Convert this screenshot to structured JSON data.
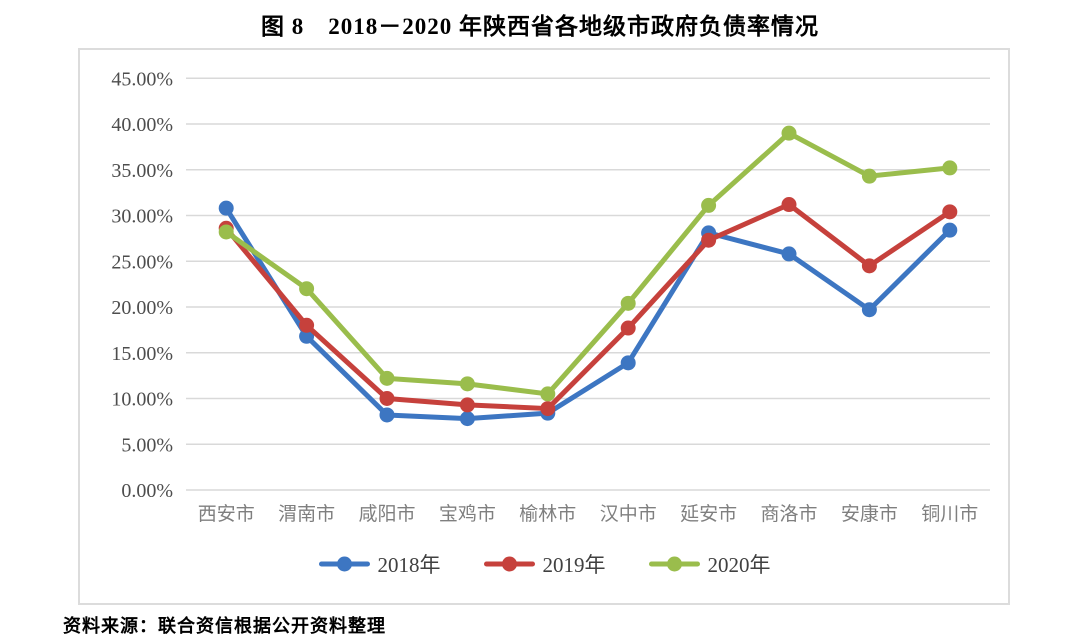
{
  "title": "图 8　2018－2020 年陕西省各地级市政府负债率情况",
  "source_note": "资料来源：联合资信根据公开资料整理",
  "colors": {
    "series_2018": "#3d76c2",
    "series_2019": "#c6413c",
    "series_2020": "#9abd4c",
    "gridline": "#d9d9d9",
    "frame_border": "#dcdcdc",
    "ytick_text": "#4d4d4d",
    "xtick_text": "#7f7f7f",
    "legend_text": "#404040"
  },
  "chart_data": {
    "type": "line",
    "title": "图 8　2018－2020 年陕西省各地级市政府负债率情况",
    "categories": [
      "西安市",
      "渭南市",
      "咸阳市",
      "宝鸡市",
      "榆林市",
      "汉中市",
      "延安市",
      "商洛市",
      "安康市",
      "铜川市"
    ],
    "series": [
      {
        "name": "2018年",
        "color": "#3d76c2",
        "values": [
          30.8,
          16.8,
          8.2,
          7.8,
          8.4,
          13.9,
          28.1,
          25.8,
          19.7,
          28.4
        ]
      },
      {
        "name": "2019年",
        "color": "#c6413c",
        "values": [
          28.6,
          18.0,
          10.0,
          9.3,
          8.9,
          17.7,
          27.3,
          31.2,
          24.5,
          30.4
        ]
      },
      {
        "name": "2020年",
        "color": "#9abd4c",
        "values": [
          28.2,
          22.0,
          12.2,
          11.6,
          10.5,
          20.4,
          31.1,
          39.0,
          34.3,
          35.2
        ]
      }
    ],
    "ylim": [
      0,
      45
    ],
    "ytick_values": [
      0,
      5,
      10,
      15,
      20,
      25,
      30,
      35,
      40,
      45
    ],
    "ytick_labels": [
      "0.00%",
      "5.00%",
      "10.00%",
      "15.00%",
      "20.00%",
      "25.00%",
      "30.00%",
      "35.00%",
      "40.00%",
      "45.00%"
    ],
    "grid": true,
    "legend_position": "bottom",
    "legend_entries": [
      "2018年",
      "2019年",
      "2020年"
    ]
  }
}
